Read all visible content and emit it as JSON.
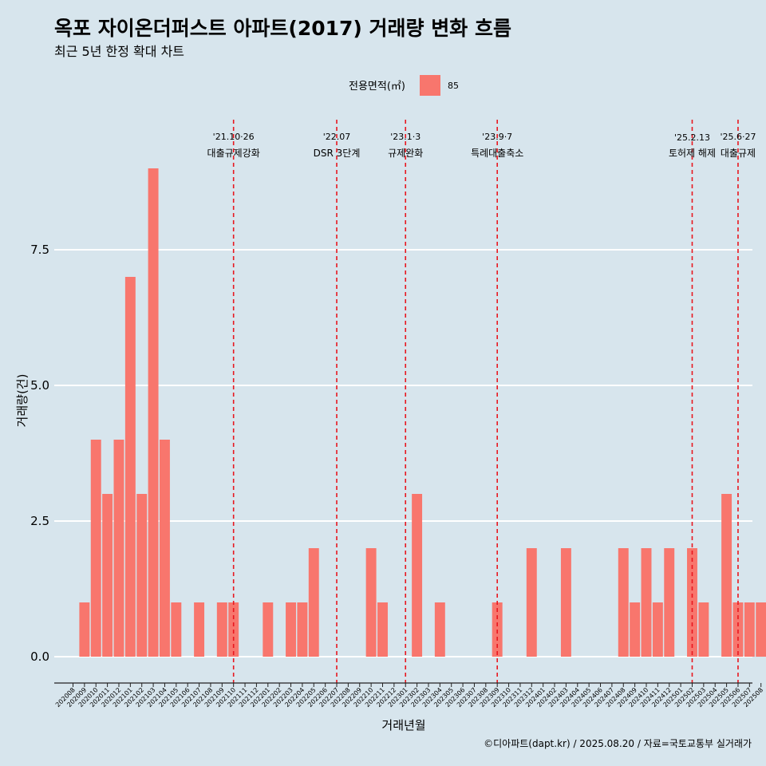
{
  "chart_data": {
    "type": "bar",
    "title": "옥포 자이온더퍼스트 아파트(2017) 거래량 변화 흐름",
    "subtitle": "최근 5년 한정 확대 차트",
    "xlabel": "거래년월",
    "ylabel": "거래량(건)",
    "ylim": [
      -0.45,
      9.6
    ],
    "yticks": [
      0,
      2.5,
      5,
      7.5
    ],
    "ytick_labels": [
      "0.0",
      "2.5",
      "5.0",
      "7.5"
    ],
    "grid": true,
    "legend": {
      "title": "전용면적(㎡)",
      "position": "top",
      "entries": [
        {
          "label": "85",
          "color": "#f8766d"
        }
      ]
    },
    "bar_color": "#f8766d",
    "event_line_color": "#e8171f",
    "categories": [
      "202008",
      "202009",
      "202010",
      "202011",
      "202012",
      "202101",
      "202102",
      "202103",
      "202104",
      "202105",
      "202106",
      "202107",
      "202108",
      "202109",
      "202110",
      "202111",
      "202112",
      "202201",
      "202202",
      "202203",
      "202204",
      "202205",
      "202206",
      "202207",
      "202208",
      "202209",
      "202210",
      "202211",
      "202212",
      "202301",
      "202302",
      "202303",
      "202304",
      "202305",
      "202306",
      "202307",
      "202308",
      "202309",
      "202310",
      "202311",
      "202312",
      "202401",
      "202402",
      "202403",
      "202404",
      "202405",
      "202406",
      "202407",
      "202408",
      "202409",
      "202410",
      "202411",
      "202412",
      "202501",
      "202502",
      "202503",
      "202504",
      "202505",
      "202506",
      "202507",
      "202508"
    ],
    "series": [
      {
        "values": [
          0,
          1,
          4,
          3,
          4,
          7,
          3,
          9,
          4,
          1,
          0,
          1,
          0,
          1,
          1,
          0,
          0,
          1,
          0,
          1,
          1,
          2,
          0,
          0,
          0,
          0,
          2,
          1,
          0,
          0,
          3,
          0,
          1,
          0,
          0,
          0,
          0,
          1,
          0,
          0,
          2,
          0,
          0,
          2,
          0,
          0,
          0,
          0,
          2,
          1,
          2,
          1,
          2,
          0,
          2,
          1,
          0,
          3,
          1,
          1,
          1
        ]
      }
    ],
    "events": [
      {
        "x": "202110",
        "date": "'21.10·26",
        "label": "대출규제강화"
      },
      {
        "x": "202207",
        "date": "'22.07",
        "label": "DSR 3단계"
      },
      {
        "x": "202301",
        "date": "'23.1·3",
        "label": "규제완화"
      },
      {
        "x": "202309",
        "date": "'23.9·7",
        "label": "특례대출축소"
      },
      {
        "x": "202502",
        "date": "'25.2.13",
        "label": "토허제 해제"
      },
      {
        "x": "202506",
        "date": "'25.6·27",
        "label": "대출규제"
      }
    ],
    "caption": "©디아파트(dapt.kr) / 2025.08.20 / 자료=국토교통부 실거래가"
  }
}
